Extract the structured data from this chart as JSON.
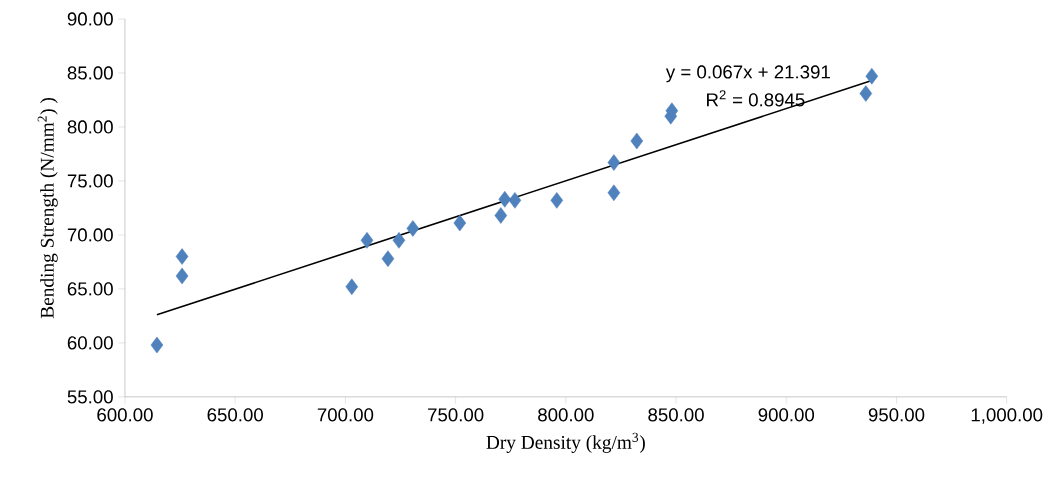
{
  "chart_data": {
    "type": "scatter",
    "xlabel": "Dry Density (kg/m$^{3}$)",
    "ylabel": "Bending Strength (N/mm$^{2}$) )",
    "series": [
      {
        "color": "#4f81bd",
        "marker": "diamond",
        "x": [
          614.5,
          625.9,
          625.9,
          702.9,
          709.8,
          719.3,
          724.3,
          730.6,
          751.9,
          770.5,
          772.3,
          776.9,
          795.9,
          821.8,
          821.8,
          832.2,
          847.6,
          848.1,
          936.1,
          938.8
        ],
        "values": [
          59.8,
          66.2,
          68.0,
          65.2,
          69.5,
          67.8,
          69.5,
          70.6,
          71.1,
          71.8,
          73.3,
          73.2,
          73.2,
          73.9,
          76.7,
          78.7,
          81.0,
          81.5,
          83.1,
          84.7
        ]
      },
      {
        "type": "line",
        "color": "#000000",
        "marker": "none",
        "line_style": "solid",
        "x": [
          614.5,
          938.8
        ],
        "values": [
          62.6,
          84.3
        ]
      }
    ],
    "annotations": [
      "y = 0.067x + 21.391",
      "R$^{2}$ = 0.8945"
    ],
    "xlim": [
      600,
      1000
    ],
    "ylim": [
      55,
      90
    ],
    "xticks": [
      {
        "value": 600,
        "label": "600.00"
      },
      {
        "value": 650,
        "label": "650.00"
      },
      {
        "value": 700,
        "label": "700.00"
      },
      {
        "value": 750,
        "label": "750.00"
      },
      {
        "value": 800,
        "label": "800.00"
      },
      {
        "value": 850,
        "label": "850.00"
      },
      {
        "value": 900,
        "label": "900.00"
      },
      {
        "value": 950,
        "label": "950.00"
      },
      {
        "value": 1000,
        "label": "1,000.00"
      }
    ],
    "yticks": [
      {
        "value": 55,
        "label": "55.00"
      },
      {
        "value": 60,
        "label": "60.00"
      },
      {
        "value": 65,
        "label": "65.00"
      },
      {
        "value": 70,
        "label": "70.00"
      },
      {
        "value": 75,
        "label": "75.00"
      },
      {
        "value": 80,
        "label": "80.00"
      },
      {
        "value": 85,
        "label": "85.00"
      },
      {
        "value": 90,
        "label": "90.00"
      }
    ],
    "grid": false
  }
}
